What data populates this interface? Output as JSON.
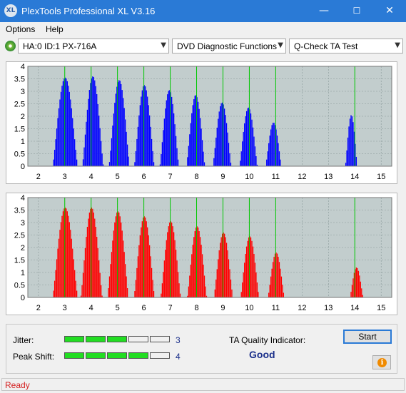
{
  "window": {
    "title": "PlexTools Professional XL V3.16",
    "icon_text": "XL",
    "controls": {
      "minimize": "—",
      "maximize": "☐",
      "close": "✕"
    }
  },
  "menu": {
    "options": "Options",
    "help": "Help"
  },
  "toolbar": {
    "drive": "HA:0 ID:1  PX-716A",
    "function": "DVD Diagnostic Functions",
    "test": "Q-Check TA Test"
  },
  "colors": {
    "land": "#0000ff",
    "pit": "#ff0000",
    "chart_bg": "#c2cdcd",
    "peak_line": "#00c800",
    "meter_on": "#22dd22"
  },
  "chart_data": [
    {
      "type": "area",
      "series_color": "#0000ff",
      "x_ticks": [
        2,
        3,
        4,
        5,
        6,
        7,
        8,
        9,
        10,
        11,
        12,
        13,
        14,
        15
      ],
      "y_ticks": [
        "0",
        "0.5",
        "1",
        "1.5",
        "2",
        "2.5",
        "3",
        "3.5",
        "4"
      ],
      "ylim": [
        0,
        4
      ],
      "xlim": [
        1.6,
        15.4
      ],
      "peak_lines": [
        3,
        4,
        5,
        6,
        7,
        8,
        9,
        10,
        11,
        14
      ],
      "grid": true,
      "humps": [
        {
          "center": 3.0,
          "height": 3.55,
          "width": 0.95
        },
        {
          "center": 4.05,
          "height": 3.6,
          "width": 0.8
        },
        {
          "center": 5.05,
          "height": 3.45,
          "width": 0.78
        },
        {
          "center": 6.0,
          "height": 3.25,
          "width": 0.76
        },
        {
          "center": 6.95,
          "height": 3.05,
          "width": 0.72
        },
        {
          "center": 7.95,
          "height": 2.85,
          "width": 0.7
        },
        {
          "center": 8.95,
          "height": 2.55,
          "width": 0.7
        },
        {
          "center": 9.95,
          "height": 2.35,
          "width": 0.68
        },
        {
          "center": 10.9,
          "height": 1.75,
          "width": 0.6
        },
        {
          "center": 13.85,
          "height": 2.05,
          "width": 0.45
        }
      ]
    },
    {
      "type": "area",
      "series_color": "#ff0000",
      "x_ticks": [
        2,
        3,
        4,
        5,
        6,
        7,
        8,
        9,
        10,
        11,
        12,
        13,
        14,
        15
      ],
      "y_ticks": [
        "0",
        "0.5",
        "1",
        "1.5",
        "2",
        "2.5",
        "3",
        "3.5",
        "4"
      ],
      "ylim": [
        0,
        4
      ],
      "xlim": [
        1.6,
        15.4
      ],
      "peak_lines": [
        3,
        4,
        5,
        6,
        7,
        8,
        9,
        10,
        11,
        14
      ],
      "grid": true,
      "humps": [
        {
          "center": 3.0,
          "height": 3.6,
          "width": 0.95
        },
        {
          "center": 4.0,
          "height": 3.6,
          "width": 0.82
        },
        {
          "center": 5.0,
          "height": 3.45,
          "width": 0.8
        },
        {
          "center": 6.0,
          "height": 3.25,
          "width": 0.78
        },
        {
          "center": 7.0,
          "height": 3.05,
          "width": 0.76
        },
        {
          "center": 8.0,
          "height": 2.85,
          "width": 0.74
        },
        {
          "center": 9.0,
          "height": 2.6,
          "width": 0.72
        },
        {
          "center": 10.0,
          "height": 2.45,
          "width": 0.7
        },
        {
          "center": 11.0,
          "height": 1.8,
          "width": 0.62
        },
        {
          "center": 14.05,
          "height": 1.2,
          "width": 0.5
        }
      ]
    }
  ],
  "results": {
    "jitter_label": "Jitter:",
    "jitter_value": "3",
    "jitter_level": 3,
    "peak_shift_label": "Peak Shift:",
    "peak_shift_value": "4",
    "peak_shift_level": 4,
    "meter_segments": 5,
    "ta_quality_label": "TA Quality Indicator:",
    "ta_quality_value": "Good",
    "start_label": "Start",
    "info_icon": "i"
  },
  "status": {
    "text": "Ready"
  }
}
